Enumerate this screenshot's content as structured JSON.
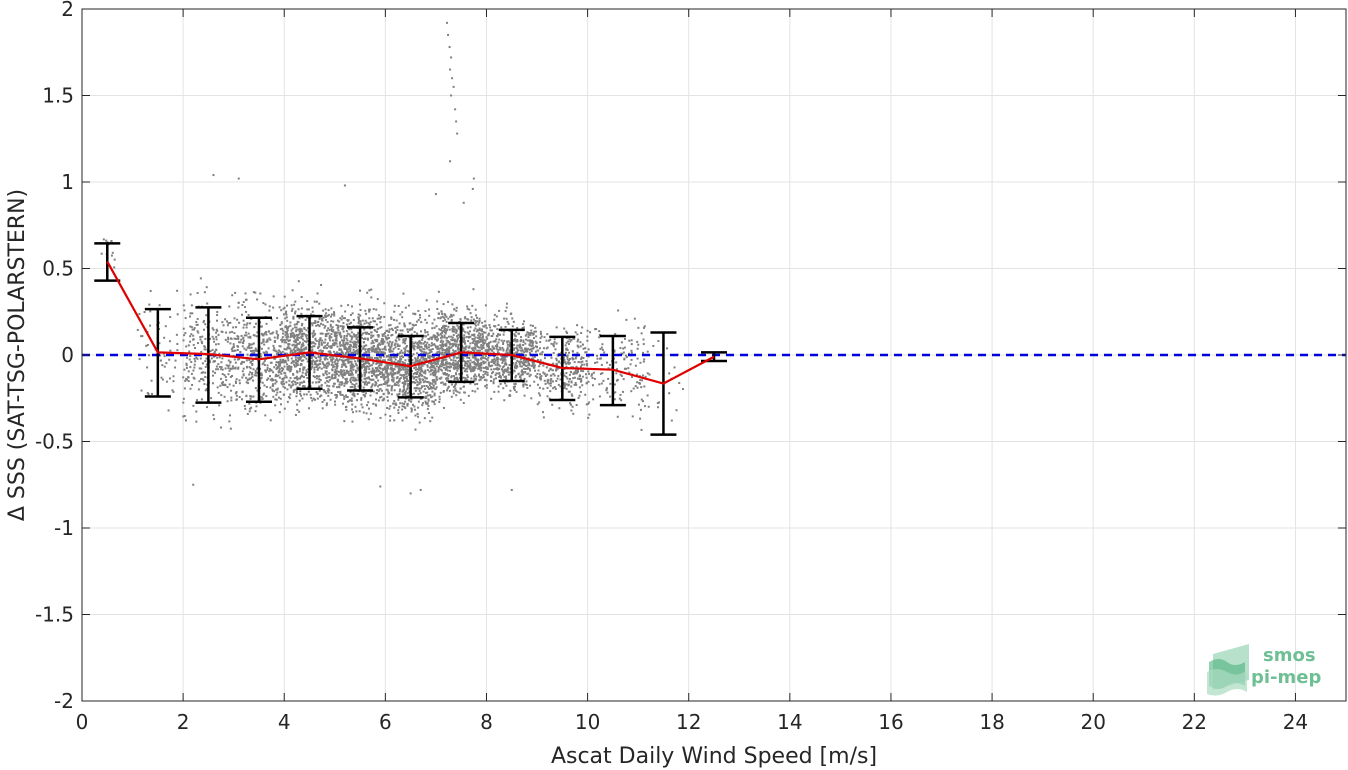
{
  "chart_data": {
    "type": "scatter",
    "title": "",
    "xlabel": "Ascat Daily Wind Speed [m/s]",
    "ylabel": "Δ SSS (SAT-TSG-POLARSTERN)",
    "xlim": [
      0,
      25
    ],
    "ylim": [
      -2,
      2
    ],
    "xticks": [
      0,
      2,
      4,
      6,
      8,
      10,
      12,
      14,
      16,
      18,
      20,
      22,
      24
    ],
    "yticks": [
      -2,
      -1.5,
      -1,
      -0.5,
      0,
      0.5,
      1,
      1.5,
      2
    ],
    "xtick_labels": [
      "0",
      "2",
      "4",
      "6",
      "8",
      "10",
      "12",
      "14",
      "16",
      "18",
      "20",
      "22",
      "24"
    ],
    "ytick_labels": [
      "-2",
      "-1.5",
      "-1",
      "-0.5",
      "0",
      "0.5",
      "1",
      "1.5",
      "2"
    ],
    "grid": true,
    "scatter_color": "#808080",
    "mean_line_color": "#e00000",
    "reference_line_color": "#0000dd",
    "errorbar_color": "#000000",
    "reference_line_y": 0,
    "binned_stats": {
      "x": [
        0.5,
        1.5,
        2.5,
        3.5,
        4.5,
        5.5,
        6.5,
        7.5,
        8.5,
        9.5,
        10.5,
        11.5,
        12.5
      ],
      "mean": [
        0.54,
        0.015,
        0.005,
        -0.025,
        0.015,
        -0.02,
        -0.065,
        0.015,
        0.0,
        -0.075,
        -0.085,
        -0.165,
        -0.01
      ],
      "lower": [
        0.43,
        -0.24,
        -0.275,
        -0.27,
        -0.195,
        -0.205,
        -0.245,
        -0.155,
        -0.15,
        -0.26,
        -0.29,
        -0.46,
        -0.035
      ],
      "upper": [
        0.645,
        0.265,
        0.275,
        0.215,
        0.225,
        0.16,
        0.11,
        0.185,
        0.145,
        0.105,
        0.11,
        0.13,
        0.015
      ]
    },
    "scatter_clusters": [
      {
        "x_range": [
          0.35,
          0.7
        ],
        "y_center": 0.6,
        "spread": 0.08,
        "count": 12
      },
      {
        "x_range": [
          1.1,
          1.9
        ],
        "y_center": 0.02,
        "spread": 0.22,
        "count": 60
      },
      {
        "x_range": [
          2.0,
          3.0
        ],
        "y_center": 0.0,
        "spread": 0.24,
        "count": 260
      },
      {
        "x_range": [
          3.0,
          4.0
        ],
        "y_center": -0.02,
        "spread": 0.22,
        "count": 420
      },
      {
        "x_range": [
          4.0,
          5.0
        ],
        "y_center": 0.02,
        "spread": 0.2,
        "count": 700
      },
      {
        "x_range": [
          5.0,
          6.0
        ],
        "y_center": -0.02,
        "spread": 0.2,
        "count": 850
      },
      {
        "x_range": [
          6.0,
          7.0
        ],
        "y_center": -0.06,
        "spread": 0.2,
        "count": 800
      },
      {
        "x_range": [
          7.0,
          8.0
        ],
        "y_center": 0.02,
        "spread": 0.17,
        "count": 750
      },
      {
        "x_range": [
          8.0,
          9.0
        ],
        "y_center": 0.0,
        "spread": 0.15,
        "count": 520
      },
      {
        "x_range": [
          9.0,
          10.0
        ],
        "y_center": -0.07,
        "spread": 0.16,
        "count": 300
      },
      {
        "x_range": [
          10.0,
          11.2
        ],
        "y_center": -0.08,
        "spread": 0.18,
        "count": 140
      },
      {
        "x_range": [
          11.0,
          11.9
        ],
        "y_center": -0.15,
        "spread": 0.25,
        "count": 25
      }
    ],
    "outliers": [
      {
        "x": 7.22,
        "y": 1.92
      },
      {
        "x": 7.24,
        "y": 1.85
      },
      {
        "x": 7.27,
        "y": 1.78
      },
      {
        "x": 7.3,
        "y": 1.72
      },
      {
        "x": 7.28,
        "y": 1.65
      },
      {
        "x": 7.32,
        "y": 1.6
      },
      {
        "x": 7.35,
        "y": 1.55
      },
      {
        "x": 7.3,
        "y": 1.5
      },
      {
        "x": 7.38,
        "y": 1.42
      },
      {
        "x": 7.4,
        "y": 1.35
      },
      {
        "x": 7.42,
        "y": 1.28
      },
      {
        "x": 7.28,
        "y": 1.12
      },
      {
        "x": 7.75,
        "y": 1.02
      },
      {
        "x": 7.73,
        "y": 0.96
      },
      {
        "x": 2.6,
        "y": 1.04
      },
      {
        "x": 3.1,
        "y": 1.02
      },
      {
        "x": 5.2,
        "y": 0.98
      },
      {
        "x": 7.0,
        "y": 0.93
      },
      {
        "x": 7.55,
        "y": 0.88
      },
      {
        "x": 2.2,
        "y": -0.75
      },
      {
        "x": 5.9,
        "y": -0.76
      },
      {
        "x": 6.5,
        "y": -0.8
      },
      {
        "x": 8.5,
        "y": -0.78
      },
      {
        "x": 6.7,
        "y": -0.78
      }
    ]
  },
  "logo": {
    "line1": "smos",
    "line2": "pi-mep"
  }
}
